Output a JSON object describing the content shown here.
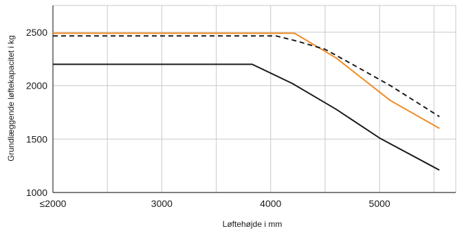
{
  "chart_data": {
    "type": "line",
    "title": "",
    "xlabel": "Løftehøjde i mm",
    "ylabel": "Grundlæggende løftekapacitet i kg",
    "xlim": [
      2000,
      5700
    ],
    "ylim": [
      1000,
      2750
    ],
    "x_ticks": [
      2000,
      3000,
      4000,
      5000
    ],
    "x_tick_labels": [
      "≤2000",
      "3000",
      "4000",
      "5000"
    ],
    "y_ticks": [
      1000,
      1500,
      2000,
      2500
    ],
    "y_tick_labels": [
      "1000",
      "1500",
      "2000",
      "2500"
    ],
    "x_minor_gridlines": [
      2500,
      3500,
      4500,
      5500
    ],
    "grid": true,
    "legend": "none",
    "series": [
      {
        "color": "#f08a24",
        "style": "solid",
        "points": [
          [
            2000,
            2490
          ],
          [
            4220,
            2490
          ],
          [
            4600,
            2260
          ],
          [
            5100,
            1860
          ],
          [
            5550,
            1600
          ]
        ]
      },
      {
        "color": "#1a1a1a",
        "style": "dashed",
        "points": [
          [
            2000,
            2465
          ],
          [
            4050,
            2465
          ],
          [
            4230,
            2420
          ],
          [
            4500,
            2340
          ],
          [
            4750,
            2200
          ],
          [
            5100,
            2000
          ],
          [
            5550,
            1710
          ]
        ]
      },
      {
        "color": "#1a1a1a",
        "style": "solid",
        "points": [
          [
            2000,
            2200
          ],
          [
            3830,
            2200
          ],
          [
            4200,
            2020
          ],
          [
            4600,
            1780
          ],
          [
            5000,
            1510
          ],
          [
            5550,
            1210
          ]
        ]
      }
    ]
  }
}
